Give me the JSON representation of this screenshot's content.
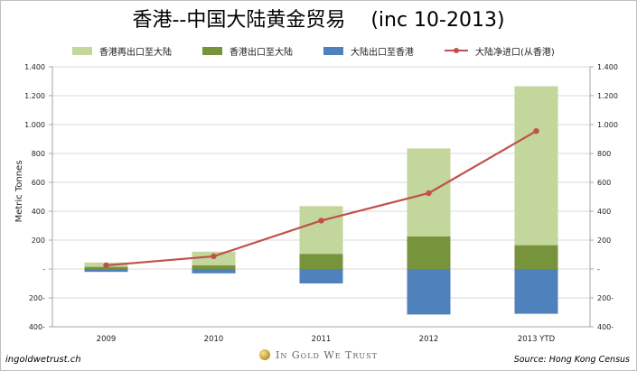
{
  "title_cn": "香港--中国大陆黄金贸易",
  "title_range": "(inc 10-2013)",
  "footer": {
    "website": "ingoldwetrust.ch",
    "brand": "In Gold We Trust",
    "source": "Source: Hong Kong Census"
  },
  "colors": {
    "reexport": "#c3d69b",
    "export": "#77933c",
    "mainland_export": "#4f81bd",
    "import_line": "#c0504d"
  },
  "chart_data": {
    "type": "bar",
    "title": "香港--中国大陆黄金贸易 (inc 10-2013)",
    "ylabel": "Metric Tonnes",
    "xlabel": "",
    "ylim": [
      -400,
      1400
    ],
    "yticks": [
      -400,
      -200,
      0,
      200,
      400,
      600,
      800,
      1000,
      1200,
      1400
    ],
    "ytick_labels": [
      "400-",
      "200-",
      "-",
      "200",
      "400",
      "600",
      "800",
      "1.000",
      "1.200",
      "1.400"
    ],
    "categories": [
      "2009",
      "2010",
      "2011",
      "2012",
      "2013 YTD"
    ],
    "legend_position": "top",
    "grid": true,
    "series": [
      {
        "name": "香港再出口至大陆",
        "type": "bar",
        "stack": "positive",
        "values": [
          30,
          95,
          330,
          610,
          1100
        ]
      },
      {
        "name": "香港出口至大陆",
        "type": "bar",
        "stack": "positive",
        "values": [
          15,
          25,
          105,
          225,
          165
        ]
      },
      {
        "name": "大陆出口至香港",
        "type": "bar",
        "stack": "negative",
        "values": [
          -20,
          -30,
          -100,
          -315,
          -310
        ]
      },
      {
        "name": "大陆净进口(从香港)",
        "type": "line",
        "values": [
          25,
          88,
          335,
          525,
          955
        ]
      }
    ]
  }
}
